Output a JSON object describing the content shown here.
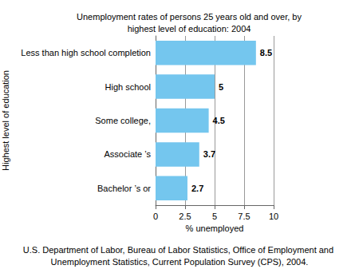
{
  "chart_data": {
    "type": "bar",
    "title": "Unemployment rates of persons 25 years old and over, by\nhighest level of education: 2004",
    "x_label": "% unemployed",
    "y_label": "Highest level of education",
    "source": "U.S. Department of Labor, Bureau of Labor Statistics, Office of Employment and Unemployment Statistics, Current Population Survey (CPS), 2004.",
    "categories": [
      "Less than high school completion",
      "High school",
      "Some college,",
      "Associate ’s",
      "Bachelor ’s or"
    ],
    "values": [
      8.5,
      5,
      4.5,
      3.7,
      2.7
    ],
    "color": "#74c6ee",
    "orientation": "horizontal",
    "xlim": [
      0,
      10
    ],
    "xticks": [
      0,
      2.5,
      5,
      7.5,
      10
    ],
    "grid": true,
    "data_labels": true
  }
}
